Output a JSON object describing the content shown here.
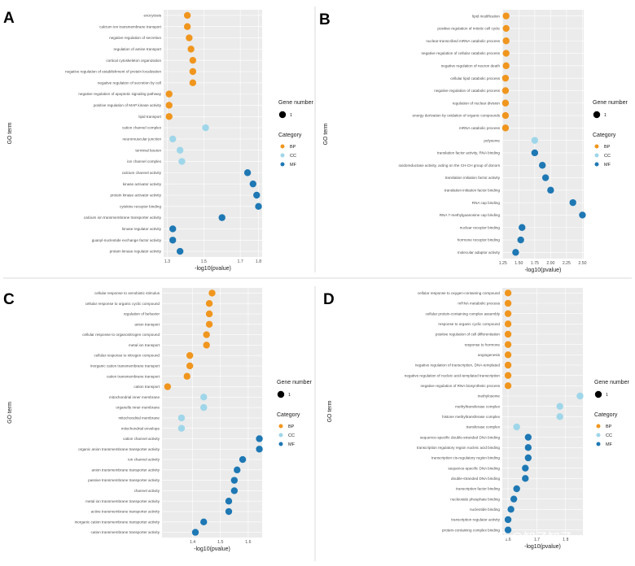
{
  "colors": {
    "BP": "#f0961e",
    "CC": "#9fd6e9",
    "MF": "#1e78b4",
    "panel_bg": "#ebebeb"
  },
  "legend": {
    "gene_title": "Gene number",
    "gene_value": "1",
    "category_title": "Category",
    "categories": [
      "BP",
      "CC",
      "MF"
    ]
  },
  "watermark": "知乎 @知了知了",
  "chart_data": [
    {
      "type": "scatter",
      "panel": "A",
      "ylabel": "GO term",
      "xlabel": "-log10(pvalue)",
      "xlim": [
        1.28,
        1.82
      ],
      "xticks": [
        1.3,
        1.5,
        1.7,
        1.8
      ],
      "xtick_labels": [
        "1.3",
        "1.5",
        "1.7",
        "1.8"
      ],
      "points": [
        {
          "term": "exocytosis",
          "category": "BP",
          "x": 1.41
        },
        {
          "term": "calcium ion transmembrane transport",
          "category": "BP",
          "x": 1.41
        },
        {
          "term": "negative regulation of secretion",
          "category": "BP",
          "x": 1.42
        },
        {
          "term": "regulation of amine transport",
          "category": "BP",
          "x": 1.43
        },
        {
          "term": "cortical cytoskeleton organization",
          "category": "BP",
          "x": 1.44
        },
        {
          "term": "negative regulation of establishment of protein localization",
          "category": "BP",
          "x": 1.44
        },
        {
          "term": "negative regulation of secretion by cell",
          "category": "BP",
          "x": 1.44
        },
        {
          "term": "negative regulation of apoptotic signaling pathway",
          "category": "BP",
          "x": 1.31
        },
        {
          "term": "positive regulation of MAP kinase activity",
          "category": "BP",
          "x": 1.31
        },
        {
          "term": "lipid transport",
          "category": "BP",
          "x": 1.31
        },
        {
          "term": "cation channel complex",
          "category": "CC",
          "x": 1.51
        },
        {
          "term": "neuromuscular junction",
          "category": "CC",
          "x": 1.33
        },
        {
          "term": "terminal bouton",
          "category": "CC",
          "x": 1.37
        },
        {
          "term": "ion channel complex",
          "category": "CC",
          "x": 1.38
        },
        {
          "term": "calcium channel activity",
          "category": "MF",
          "x": 1.74
        },
        {
          "term": "kinase activator activity",
          "category": "MF",
          "x": 1.77
        },
        {
          "term": "protein kinase activator activity",
          "category": "MF",
          "x": 1.79
        },
        {
          "term": "cytokine receptor binding",
          "category": "MF",
          "x": 1.8
        },
        {
          "term": "calcium ion transmembrane transporter activity",
          "category": "MF",
          "x": 1.6
        },
        {
          "term": "kinase regulator activity",
          "category": "MF",
          "x": 1.33
        },
        {
          "term": "guanyl-nucleotide exchange factor activity",
          "category": "MF",
          "x": 1.33
        },
        {
          "term": "protein kinase regulator activity",
          "category": "MF",
          "x": 1.37
        }
      ]
    },
    {
      "type": "scatter",
      "panel": "B",
      "ylabel": "GO term",
      "xlabel": "-log10(pvalue)",
      "xlim": [
        1.24,
        2.52
      ],
      "xticks": [
        1.25,
        1.5,
        1.75,
        2.0,
        2.25,
        2.5
      ],
      "xtick_labels": [
        "1.25",
        "1.50",
        "1.75",
        "2.00",
        "2.25",
        "2.50"
      ],
      "points": [
        {
          "term": "lipid modification",
          "category": "BP",
          "x": 1.3
        },
        {
          "term": "positive regulation of mitotic cell cycle",
          "category": "BP",
          "x": 1.3
        },
        {
          "term": "nuclear-transcribed mRNA catabolic process",
          "category": "BP",
          "x": 1.3
        },
        {
          "term": "negative regulation of cellular catabolic process",
          "category": "BP",
          "x": 1.3
        },
        {
          "term": "negative regulation of neuron death",
          "category": "BP",
          "x": 1.3
        },
        {
          "term": "cellular lipid catabolic process",
          "category": "BP",
          "x": 1.29
        },
        {
          "term": "negative regulation of catabolic process",
          "category": "BP",
          "x": 1.29
        },
        {
          "term": "regulation of nuclear division",
          "category": "BP",
          "x": 1.29
        },
        {
          "term": "energy derivation by oxidation of organic compounds",
          "category": "BP",
          "x": 1.29
        },
        {
          "term": "mRNA catabolic process",
          "category": "BP",
          "x": 1.29
        },
        {
          "term": "polysome",
          "category": "CC",
          "x": 1.75
        },
        {
          "term": "translation factor activity, RNA binding",
          "category": "MF",
          "x": 1.75
        },
        {
          "term": "oxidoreductase activity, acting on the CH-CH group of donors",
          "category": "MF",
          "x": 1.87
        },
        {
          "term": "translation initiation factor activity",
          "category": "MF",
          "x": 1.92
        },
        {
          "term": "translation initiation factor binding",
          "category": "MF",
          "x": 2.0
        },
        {
          "term": "RNA cap binding",
          "category": "MF",
          "x": 2.35
        },
        {
          "term": "RNA 7-methylguanosine cap binding",
          "category": "MF",
          "x": 2.5
        },
        {
          "term": "nuclear receptor binding",
          "category": "MF",
          "x": 1.55
        },
        {
          "term": "hormone receptor binding",
          "category": "MF",
          "x": 1.53
        },
        {
          "term": "molecular adaptor activity",
          "category": "MF",
          "x": 1.45
        }
      ]
    },
    {
      "type": "scatter",
      "panel": "C",
      "ylabel": "GO term",
      "xlabel": "-log10(pvalue)",
      "xlim": [
        1.29,
        1.65
      ],
      "xticks": [
        1.4,
        1.5,
        1.6
      ],
      "xtick_labels": [
        "1.4",
        "1.5",
        "1.6"
      ],
      "points": [
        {
          "term": "cellular response to xenobiotic stimulus",
          "category": "BP",
          "x": 1.47
        },
        {
          "term": "cellular response to organic cyclic compound",
          "category": "BP",
          "x": 1.46
        },
        {
          "term": "regulation of behavior",
          "category": "BP",
          "x": 1.46
        },
        {
          "term": "anion transport",
          "category": "BP",
          "x": 1.46
        },
        {
          "term": "cellular response to organonitrogen compound",
          "category": "BP",
          "x": 1.45
        },
        {
          "term": "metal ion transport",
          "category": "BP",
          "x": 1.45
        },
        {
          "term": "cellular response to nitrogen compound",
          "category": "BP",
          "x": 1.39
        },
        {
          "term": "inorganic cation transmembrane transport",
          "category": "BP",
          "x": 1.39
        },
        {
          "term": "cation transmembrane transport",
          "category": "BP",
          "x": 1.38
        },
        {
          "term": "cation transport",
          "category": "BP",
          "x": 1.31
        },
        {
          "term": "mitochondrial inner membrane",
          "category": "CC",
          "x": 1.44
        },
        {
          "term": "organelle inner membrane",
          "category": "CC",
          "x": 1.44
        },
        {
          "term": "mitochondrial membrane",
          "category": "CC",
          "x": 1.36
        },
        {
          "term": "mitochondrial envelope",
          "category": "CC",
          "x": 1.36
        },
        {
          "term": "cation channel activity",
          "category": "MF",
          "x": 1.64
        },
        {
          "term": "organic anion transmembrane transporter activity",
          "category": "MF",
          "x": 1.64
        },
        {
          "term": "ion channel activity",
          "category": "MF",
          "x": 1.58
        },
        {
          "term": "anion transmembrane transporter activity",
          "category": "MF",
          "x": 1.56
        },
        {
          "term": "passive transmembrane transporter activity",
          "category": "MF",
          "x": 1.55
        },
        {
          "term": "channel activity",
          "category": "MF",
          "x": 1.55
        },
        {
          "term": "metal ion transmembrane transporter activity",
          "category": "MF",
          "x": 1.53
        },
        {
          "term": "active transmembrane transporter activity",
          "category": "MF",
          "x": 1.53
        },
        {
          "term": "inorganic cation transmembrane transporter activity",
          "category": "MF",
          "x": 1.44
        },
        {
          "term": "cation transmembrane transporter activity",
          "category": "MF",
          "x": 1.41
        }
      ]
    },
    {
      "type": "scatter",
      "panel": "D",
      "ylabel": "GO term",
      "xlabel": "-log10(pvalue)",
      "xlim": [
        1.58,
        1.86
      ],
      "xticks": [
        1.6,
        1.7,
        1.8
      ],
      "xtick_labels": [
        "1.6",
        "1.7",
        "1.8"
      ],
      "points": [
        {
          "term": "cellular response to oxygen-containing compound",
          "category": "BP",
          "x": 1.6
        },
        {
          "term": "mRNA metabolic process",
          "category": "BP",
          "x": 1.6
        },
        {
          "term": "cellular protein-containing complex assembly",
          "category": "BP",
          "x": 1.6
        },
        {
          "term": "response to organic cyclic compound",
          "category": "BP",
          "x": 1.6
        },
        {
          "term": "positive regulation of cell differentiation",
          "category": "BP",
          "x": 1.6
        },
        {
          "term": "response to hormone",
          "category": "BP",
          "x": 1.6
        },
        {
          "term": "angiogenesis",
          "category": "BP",
          "x": 1.6
        },
        {
          "term": "negative regulation of transcription, DNA-templated",
          "category": "BP",
          "x": 1.6
        },
        {
          "term": "negative regulation of nucleic acid-templated transcription",
          "category": "BP",
          "x": 1.6
        },
        {
          "term": "negative regulation of RNA biosynthetic process",
          "category": "BP",
          "x": 1.6
        },
        {
          "term": "methylosome",
          "category": "CC",
          "x": 1.85
        },
        {
          "term": "methyltransferase complex",
          "category": "CC",
          "x": 1.78
        },
        {
          "term": "histone methyltransferase complex",
          "category": "CC",
          "x": 1.78
        },
        {
          "term": "transferase complex",
          "category": "CC",
          "x": 1.63
        },
        {
          "term": "sequence-specific double-stranded DNA binding",
          "category": "MF",
          "x": 1.67
        },
        {
          "term": "transcription regulatory region nucleic acid binding",
          "category": "MF",
          "x": 1.67
        },
        {
          "term": "transcription cis-regulatory region binding",
          "category": "MF",
          "x": 1.67
        },
        {
          "term": "sequence-specific DNA binding",
          "category": "MF",
          "x": 1.66
        },
        {
          "term": "double-stranded DNA binding",
          "category": "MF",
          "x": 1.66
        },
        {
          "term": "transcription factor binding",
          "category": "MF",
          "x": 1.63
        },
        {
          "term": "nucleoside phosphate binding",
          "category": "MF",
          "x": 1.62
        },
        {
          "term": "nucleotide binding",
          "category": "MF",
          "x": 1.61
        },
        {
          "term": "transcription regulator activity",
          "category": "MF",
          "x": 1.6
        },
        {
          "term": "protein-containing complex binding",
          "category": "MF",
          "x": 1.6
        }
      ]
    }
  ]
}
